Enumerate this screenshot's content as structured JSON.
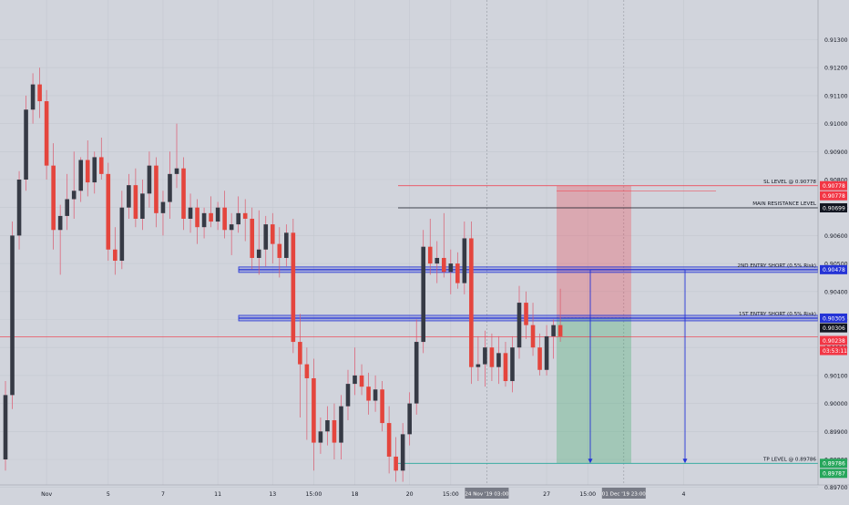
{
  "chart_data": {
    "type": "candlestick",
    "title": "",
    "y_axis": {
      "position": "right",
      "ylim": [
        0.8951,
        0.9144
      ],
      "ticks": [
        "0.91300",
        "0.91200",
        "0.91100",
        "0.91000",
        "0.90900",
        "0.90800",
        "0.90700",
        "0.90600",
        "0.90500",
        "0.90400",
        "0.90300",
        "0.90200",
        "0.90100",
        "0.90000",
        "0.89900",
        "0.89800",
        "0.89700",
        "0.89600"
      ]
    },
    "x_axis": {
      "ticks": [
        {
          "label": "Nov",
          "i": 6
        },
        {
          "label": "5",
          "i": 15
        },
        {
          "label": "7",
          "i": 23
        },
        {
          "label": "11",
          "i": 31
        },
        {
          "label": "13",
          "i": 39
        },
        {
          "label": "15:00",
          "i": 45
        },
        {
          "label": "18",
          "i": 51
        },
        {
          "label": "20",
          "i": 59
        },
        {
          "label": "15:00",
          "i": 65
        },
        {
          "label": "27",
          "i": 79
        },
        {
          "label": "15:00",
          "i": 85
        },
        {
          "label": "4",
          "i": 99
        }
      ],
      "crosshair_labels": [
        {
          "label": "24 Nov '19",
          "i": 70,
          "time": "03:00"
        },
        {
          "label": "01 Dec '19",
          "i": 90,
          "time": "23:00"
        }
      ]
    },
    "grid": true,
    "candles": [
      [
        0.898,
        0.9008,
        0.8976,
        0.9003
      ],
      [
        0.9003,
        0.9065,
        0.8998,
        0.906
      ],
      [
        0.906,
        0.9083,
        0.9055,
        0.908
      ],
      [
        0.908,
        0.911,
        0.9076,
        0.9105
      ],
      [
        0.9105,
        0.9118,
        0.91,
        0.9114
      ],
      [
        0.9114,
        0.912,
        0.9102,
        0.9108
      ],
      [
        0.9108,
        0.9112,
        0.908,
        0.9085
      ],
      [
        0.9085,
        0.9093,
        0.9055,
        0.9062
      ],
      [
        0.9062,
        0.9071,
        0.9046,
        0.9067
      ],
      [
        0.9067,
        0.9082,
        0.9062,
        0.9073
      ],
      [
        0.9073,
        0.909,
        0.9066,
        0.9076
      ],
      [
        0.9076,
        0.9088,
        0.9072,
        0.9087
      ],
      [
        0.9087,
        0.9094,
        0.9074,
        0.9079
      ],
      [
        0.9079,
        0.909,
        0.9075,
        0.9088
      ],
      [
        0.9088,
        0.9095,
        0.908,
        0.9082
      ],
      [
        0.9082,
        0.9086,
        0.9051,
        0.9055
      ],
      [
        0.9055,
        0.9063,
        0.9046,
        0.9051
      ],
      [
        0.9051,
        0.9076,
        0.9048,
        0.907
      ],
      [
        0.907,
        0.9082,
        0.9066,
        0.9078
      ],
      [
        0.9078,
        0.9084,
        0.9063,
        0.9066
      ],
      [
        0.9066,
        0.908,
        0.9062,
        0.9075
      ],
      [
        0.9075,
        0.909,
        0.907,
        0.9085
      ],
      [
        0.9085,
        0.9088,
        0.9063,
        0.9068
      ],
      [
        0.9068,
        0.9076,
        0.906,
        0.9072
      ],
      [
        0.9072,
        0.909,
        0.9066,
        0.9082
      ],
      [
        0.9082,
        0.91,
        0.9077,
        0.9084
      ],
      [
        0.9084,
        0.9088,
        0.9062,
        0.9066
      ],
      [
        0.9066,
        0.9075,
        0.9061,
        0.907
      ],
      [
        0.907,
        0.9073,
        0.9057,
        0.9063
      ],
      [
        0.9063,
        0.907,
        0.9059,
        0.9068
      ],
      [
        0.9068,
        0.9074,
        0.9063,
        0.9065
      ],
      [
        0.9065,
        0.9072,
        0.9062,
        0.907
      ],
      [
        0.907,
        0.9076,
        0.9059,
        0.9062
      ],
      [
        0.9062,
        0.9068,
        0.9053,
        0.9064
      ],
      [
        0.9064,
        0.9074,
        0.9061,
        0.9068
      ],
      [
        0.9068,
        0.9073,
        0.9058,
        0.9066
      ],
      [
        0.9066,
        0.907,
        0.9048,
        0.9052
      ],
      [
        0.9052,
        0.9069,
        0.9046,
        0.9055
      ],
      [
        0.9055,
        0.9067,
        0.9049,
        0.9064
      ],
      [
        0.9064,
        0.9068,
        0.905,
        0.9057
      ],
      [
        0.9057,
        0.9063,
        0.9045,
        0.9052
      ],
      [
        0.9052,
        0.9064,
        0.9049,
        0.9061
      ],
      [
        0.9061,
        0.9066,
        0.9018,
        0.9022
      ],
      [
        0.9022,
        0.9032,
        0.8995,
        0.9014
      ],
      [
        0.9014,
        0.902,
        0.8987,
        0.9009
      ],
      [
        0.9009,
        0.9016,
        0.8976,
        0.8986
      ],
      [
        0.8986,
        0.8995,
        0.8982,
        0.899
      ],
      [
        0.899,
        0.8999,
        0.8985,
        0.8994
      ],
      [
        0.8994,
        0.9,
        0.898,
        0.8986
      ],
      [
        0.8986,
        0.9003,
        0.898,
        0.8999
      ],
      [
        0.8999,
        0.9012,
        0.8994,
        0.9007
      ],
      [
        0.9007,
        0.902,
        0.9003,
        0.901
      ],
      [
        0.901,
        0.9014,
        0.9003,
        0.9006
      ],
      [
        0.9006,
        0.9011,
        0.8996,
        0.9001
      ],
      [
        0.9001,
        0.901,
        0.8997,
        0.9005
      ],
      [
        0.9005,
        0.9008,
        0.899,
        0.8993
      ],
      [
        0.8993,
        0.8999,
        0.8975,
        0.8981
      ],
      [
        0.8981,
        0.8988,
        0.8972,
        0.8976
      ],
      [
        0.8976,
        0.8993,
        0.8972,
        0.8989
      ],
      [
        0.8989,
        0.9004,
        0.8985,
        0.9
      ],
      [
        0.9,
        0.903,
        0.8996,
        0.9022
      ],
      [
        0.9022,
        0.9062,
        0.9018,
        0.9056
      ],
      [
        0.9056,
        0.9066,
        0.9046,
        0.905
      ],
      [
        0.905,
        0.9058,
        0.9043,
        0.9052
      ],
      [
        0.9052,
        0.9068,
        0.9045,
        0.9047
      ],
      [
        0.9047,
        0.9055,
        0.9039,
        0.905
      ],
      [
        0.905,
        0.9054,
        0.9041,
        0.9043
      ],
      [
        0.9043,
        0.9065,
        0.9039,
        0.9059
      ],
      [
        0.9059,
        0.9065,
        0.9007,
        0.9013
      ],
      [
        0.9013,
        0.9024,
        0.9008,
        0.9014
      ],
      [
        0.9014,
        0.9026,
        0.9006,
        0.902
      ],
      [
        0.902,
        0.9025,
        0.9008,
        0.9013
      ],
      [
        0.9013,
        0.9024,
        0.9007,
        0.9018
      ],
      [
        0.9018,
        0.9022,
        0.9006,
        0.9008
      ],
      [
        0.9008,
        0.9024,
        0.9004,
        0.902
      ],
      [
        0.902,
        0.9042,
        0.9016,
        0.9036
      ],
      [
        0.9036,
        0.904,
        0.9023,
        0.9028
      ],
      [
        0.9028,
        0.9036,
        0.9017,
        0.902
      ],
      [
        0.902,
        0.9025,
        0.901,
        0.9012
      ],
      [
        0.9012,
        0.9028,
        0.901,
        0.9024
      ],
      [
        0.9024,
        0.903,
        0.9016,
        0.9028
      ],
      [
        0.9028,
        0.9041,
        0.9022,
        0.9024
      ]
    ],
    "levels": {
      "sl": {
        "label": "SL LEVEL @ 0.90778",
        "price": 0.90778,
        "price_tag": "0.90778",
        "extra_tag": "0.90778",
        "color": "#f23645"
      },
      "resistance": {
        "label": "MAIN RESISTANCE LEVEL",
        "price": 0.90699,
        "price_tag": "0.90699",
        "color": "#131722"
      },
      "entry2": {
        "label": "2ND ENTRY SHORT (0.5% Risk)",
        "price": 0.90478,
        "price_tag": "0.90478",
        "color": "#2433d6"
      },
      "entry1": {
        "label": "1ST ENTRY SHORT (0.5% Risk)",
        "price": 0.90305,
        "price_tag": "0.90305",
        "color": "#2433d6"
      },
      "tp": {
        "label": "TP LEVEL @ 0.89786",
        "price": 0.89786,
        "price_tag": "0.89786",
        "extra_tag": "0.89787",
        "color": "#26a69a"
      }
    },
    "position": {
      "entry": 0.90306,
      "entry_tag": "0.90306",
      "stop": 0.90778,
      "target": 0.89786
    },
    "current_price": {
      "price": 0.90238,
      "price_tag": "0.90238",
      "countdown": "03:53:11",
      "color": "#f23645"
    }
  }
}
